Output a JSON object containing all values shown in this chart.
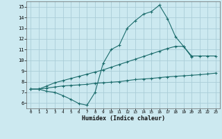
{
  "xlabel": "Humidex (Indice chaleur)",
  "bg_color": "#cce9f0",
  "grid_color": "#aacdd8",
  "line_color": "#1a6b6b",
  "xlim": [
    -0.5,
    23.5
  ],
  "ylim": [
    5.5,
    15.5
  ],
  "xticks": [
    0,
    1,
    2,
    3,
    4,
    5,
    6,
    7,
    8,
    9,
    10,
    11,
    12,
    13,
    14,
    15,
    16,
    17,
    18,
    19,
    20,
    21,
    22,
    23
  ],
  "yticks": [
    6,
    7,
    8,
    9,
    10,
    11,
    12,
    13,
    14,
    15
  ],
  "line1_x": [
    0,
    1,
    2,
    3,
    4,
    5,
    6,
    7,
    8,
    9,
    10,
    11,
    12,
    13,
    14,
    15,
    16,
    17,
    18,
    19,
    20
  ],
  "line1_y": [
    7.3,
    7.3,
    7.1,
    7.0,
    6.7,
    6.35,
    5.95,
    5.8,
    7.0,
    9.7,
    11.0,
    11.4,
    13.0,
    13.7,
    14.3,
    14.55,
    15.15,
    13.9,
    12.2,
    11.3,
    10.3
  ],
  "line2_x": [
    0,
    1,
    2,
    3,
    4,
    5,
    6,
    7,
    8,
    9,
    10,
    11,
    12,
    13,
    14,
    15,
    16,
    17,
    18,
    19,
    20,
    21,
    22,
    23
  ],
  "line2_y": [
    7.3,
    7.3,
    7.6,
    7.9,
    8.1,
    8.3,
    8.5,
    8.7,
    8.9,
    9.1,
    9.35,
    9.6,
    9.85,
    10.1,
    10.35,
    10.6,
    10.85,
    11.1,
    11.3,
    11.3,
    10.4,
    10.4,
    10.4,
    10.4
  ],
  "line3_x": [
    0,
    1,
    2,
    3,
    4,
    5,
    6,
    7,
    8,
    9,
    10,
    11,
    12,
    13,
    14,
    15,
    16,
    17,
    18,
    19,
    20,
    21,
    22,
    23
  ],
  "line3_y": [
    7.3,
    7.3,
    7.4,
    7.5,
    7.6,
    7.65,
    7.7,
    7.75,
    7.85,
    7.9,
    7.95,
    8.0,
    8.1,
    8.2,
    8.25,
    8.3,
    8.38,
    8.45,
    8.5,
    8.55,
    8.6,
    8.65,
    8.72,
    8.8
  ]
}
